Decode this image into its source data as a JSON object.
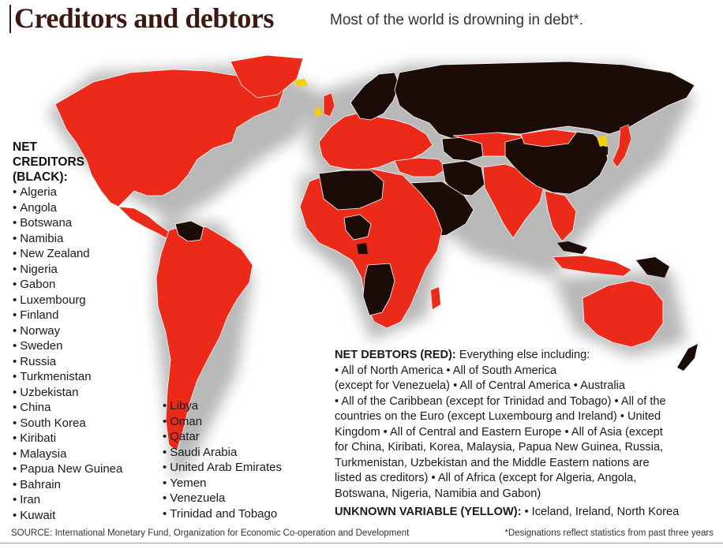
{
  "header": {
    "title": "Creditors and debtors",
    "subtitle": "Most of the world is drowning in debt*."
  },
  "legend_colors": {
    "creditor": "#1b0c08",
    "debtor": "#ec2a1a",
    "unknown": "#f2d100",
    "ocean_shadow": "#b9b9b9"
  },
  "creditors": {
    "heading_line1": "NET",
    "heading_line2": "CREDITORS",
    "heading_line3": "(BLACK):",
    "column1": [
      "Algeria",
      "Angola",
      "Botswana",
      "Namibia",
      "New Zealand",
      "Nigeria",
      "Gabon",
      "Luxembourg",
      "Finland",
      "Norway",
      "Sweden",
      "Russia",
      "Turkmenistan",
      "Uzbekistan",
      "China",
      "South Korea",
      "Kiribati",
      "Malaysia",
      "Papua New Guinea",
      "Bahrain",
      "Iran",
      "Kuwait"
    ],
    "column2": [
      "Libya",
      "Oman",
      "Qatar",
      "Saudi Arabia",
      "United Arab Emirates",
      "Yemen",
      "Venezuela",
      "Trinidad and Tobago"
    ]
  },
  "debtors": {
    "heading": "NET DEBTORS (RED):",
    "lines": [
      "Everything else including:",
      "• All of North America • All of South America",
      "(except for Venezuela)  • All of Central America • Australia",
      "• All of the Caribbean (except for Trinidad and Tobago)  • All of the",
      "countries on the Euro (except Luxembourg and Ireland) • United",
      "Kingdom • All of Central and Eastern Europe  • All of Asia (except",
      "for China, Kiribati, Korea, Malaysia, Papua New Guinea, Russia,",
      "Turkmenistan, Uzbekistan and the Middle Eastern nations are",
      "listed as creditors) • All of Africa (except for Algeria, Angola,",
      "Botswana, Nigeria, Namibia and Gabon)"
    ]
  },
  "unknown": {
    "heading": "UNKNOWN VARIABLE (YELLOW):",
    "text": " • Iceland, Ireland, North Korea"
  },
  "footer": {
    "source": "SOURCE: International Monetary Fund, Organization for Economic Co-operation and Development",
    "note": "*Designations reflect statistics from past three years"
  }
}
